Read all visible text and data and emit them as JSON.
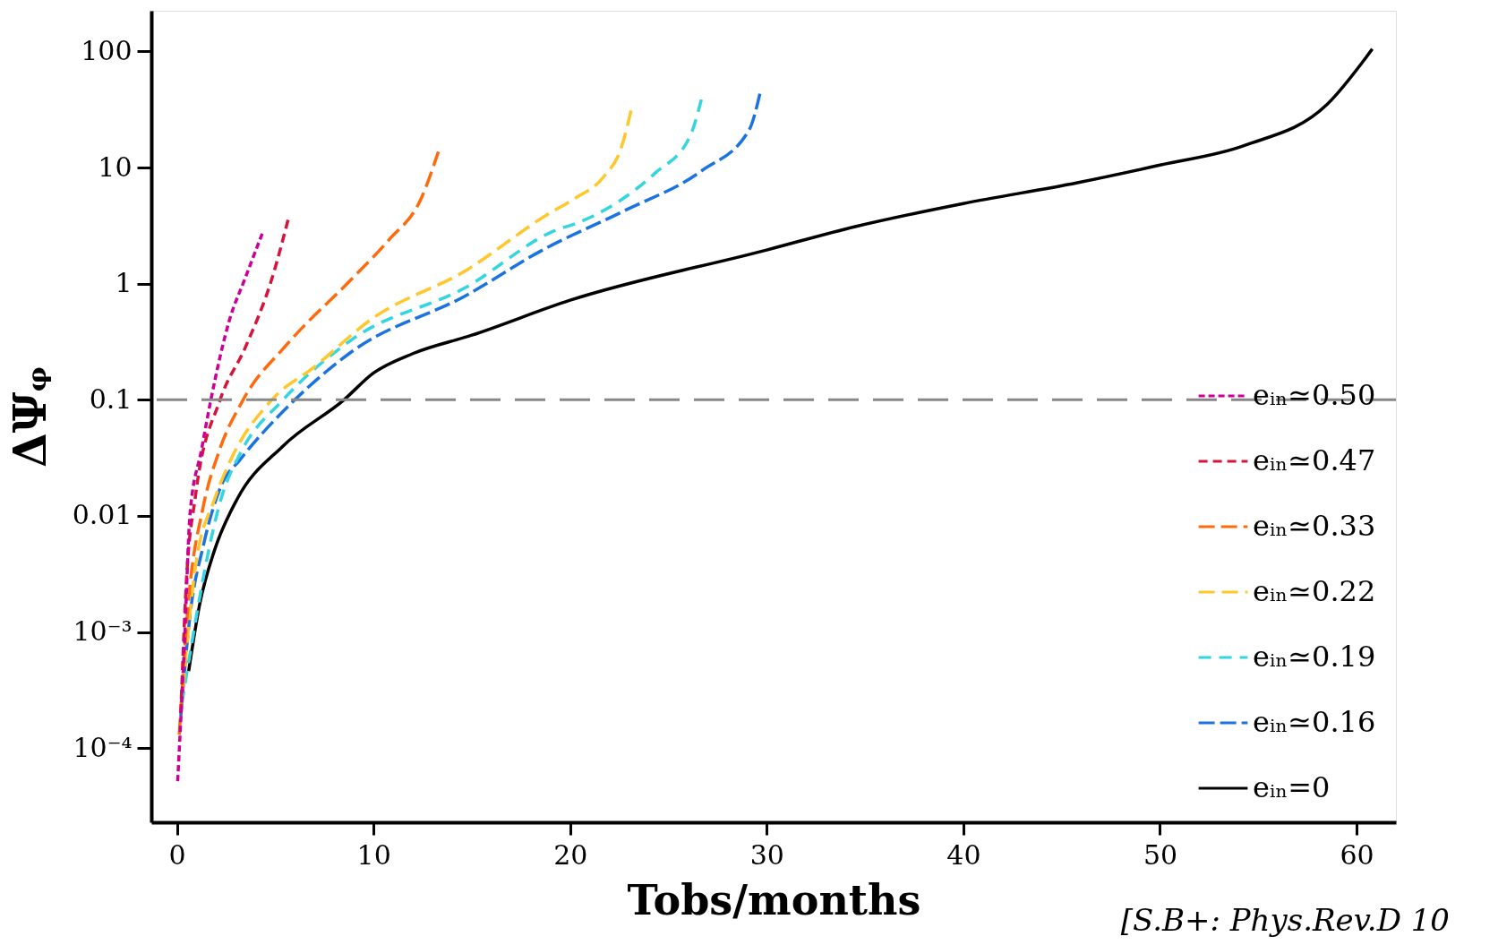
{
  "chart_data": {
    "type": "line",
    "xlabel": "Tobs/months",
    "ylabel": "ΔΨᵩ",
    "xlim": [
      -1.3,
      62
    ],
    "xticks": [
      0,
      10,
      20,
      30,
      40,
      50,
      60
    ],
    "ylim": [
      2.3e-05,
      224
    ],
    "yticks": [
      100,
      10,
      1,
      0.1,
      0.01,
      {
        "value": 0.001,
        "label": "10⁻³"
      },
      {
        "value": 0.0001,
        "label": "10⁻⁴"
      }
    ],
    "log": "y",
    "grid": false,
    "legend": "bottom right",
    "ref_lines": [
      {
        "axis": "y",
        "value": 0.1,
        "color": "#888888",
        "line_style": "dashed"
      }
    ],
    "annotations": [
      "[S.B+: Phys.Rev.D 10"
    ],
    "series": [
      {
        "name": "eᵢₙ≃0.50",
        "color": "#cc0099",
        "line_style": "dotted",
        "x": [
          0.04,
          0.38,
          0.67,
          1.25,
          1.73,
          2.68,
          3.46,
          4.34
        ],
        "values": [
          5.2e-05,
          0.00076,
          0.0105,
          0.037,
          0.1,
          0.49,
          1.1,
          2.7
        ]
      },
      {
        "name": "eᵢₙ≃0.47",
        "color": "#d6143c",
        "line_style": "dashed",
        "x": [
          0.2,
          0.47,
          0.95,
          2.2,
          3.47,
          4.83,
          5.7
        ],
        "values": [
          0.0002,
          0.0025,
          0.015,
          0.1,
          0.28,
          1.1,
          3.8
        ]
      },
      {
        "name": "eᵢₙ≃0.33",
        "color": "#ff6a0d",
        "line_style": "dashed",
        "x": [
          0.12,
          0.57,
          1.34,
          2.12,
          3.37,
          5.6,
          8.9,
          10.8,
          12.4,
          13.3
        ],
        "values": [
          0.00013,
          0.0017,
          0.012,
          0.035,
          0.1,
          0.3,
          1.1,
          2.4,
          5.3,
          13.7
        ]
      },
      {
        "name": "eᵢₙ≃0.22",
        "color": "#ffc72c",
        "line_style": "dashed",
        "x": [
          0.3,
          0.95,
          1.92,
          2.68,
          4.83,
          6.96,
          9.86,
          14.7,
          18.9,
          20.3,
          21.7,
          22.6,
          23.1
        ],
        "values": [
          0.00032,
          0.0037,
          0.014,
          0.029,
          0.1,
          0.19,
          0.49,
          1.3,
          4.0,
          5.5,
          8.3,
          14.8,
          31
        ]
      },
      {
        "name": "eᵢₙ≃0.19",
        "color": "#33d6e0",
        "line_style": "dashed",
        "x": [
          0.25,
          2.3,
          3.28,
          5.4,
          8.9,
          14.7,
          19.3,
          20.3,
          24.3,
          26.1,
          26.7
        ],
        "values": [
          0.00024,
          0.015,
          0.036,
          0.1,
          0.33,
          0.93,
          2.9,
          3.3,
          8.9,
          18.6,
          40
        ]
      },
      {
        "name": "eᵢₙ≃0.16",
        "color": "#1a73e0",
        "line_style": "dashed",
        "x": [
          0.2,
          0.67,
          1.34,
          2.3,
          3.18,
          6.0,
          8.9,
          14.7,
          18.6,
          22.7,
          26.7,
          29.1,
          29.7
        ],
        "values": [
          0.00019,
          0.0014,
          0.0055,
          0.019,
          0.03,
          0.1,
          0.26,
          0.79,
          1.95,
          4.2,
          9.4,
          21,
          47
        ]
      },
      {
        "name": "eᵢₙ=0",
        "color": "#000000",
        "line_style": "solid",
        "x": [
          0.6,
          1.15,
          1.92,
          3.07,
          5.4,
          8.5,
          10,
          12,
          15,
          20,
          30,
          34.5,
          40,
          45.8,
          50,
          54.3,
          58.5,
          60.8
        ],
        "values": [
          0.00046,
          0.0017,
          0.0051,
          0.014,
          0.04,
          0.1,
          0.17,
          0.25,
          0.36,
          0.72,
          1.95,
          3.1,
          4.9,
          7.4,
          10.5,
          15.5,
          35,
          105
        ]
      }
    ]
  }
}
